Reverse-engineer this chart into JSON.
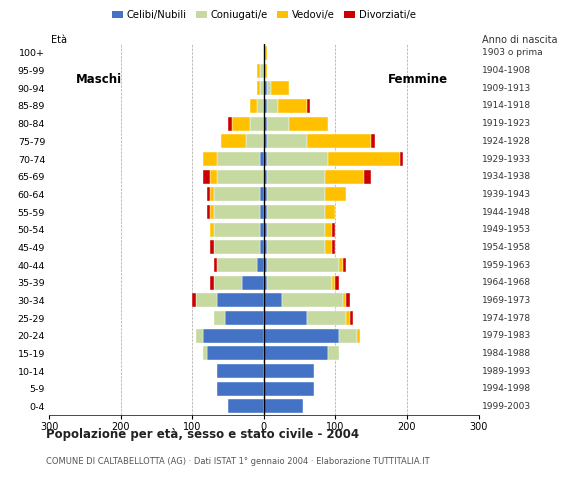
{
  "age_groups": [
    "0-4",
    "5-9",
    "10-14",
    "15-19",
    "20-24",
    "25-29",
    "30-34",
    "35-39",
    "40-44",
    "45-49",
    "50-54",
    "55-59",
    "60-64",
    "65-69",
    "70-74",
    "75-79",
    "80-84",
    "85-89",
    "90-94",
    "95-99",
    "100+"
  ],
  "birth_years": [
    "1999-2003",
    "1994-1998",
    "1989-1993",
    "1984-1988",
    "1979-1983",
    "1974-1978",
    "1969-1973",
    "1964-1968",
    "1959-1963",
    "1954-1958",
    "1949-1953",
    "1944-1948",
    "1939-1943",
    "1934-1938",
    "1929-1933",
    "1924-1928",
    "1919-1923",
    "1914-1918",
    "1909-1913",
    "1904-1908",
    "1903 o prima"
  ],
  "male_celibe": [
    50,
    65,
    65,
    80,
    85,
    55,
    65,
    30,
    10,
    5,
    5,
    5,
    5,
    0,
    5,
    0,
    0,
    0,
    0,
    0,
    0
  ],
  "male_coniugato": [
    0,
    0,
    0,
    5,
    10,
    15,
    30,
    40,
    55,
    65,
    65,
    65,
    65,
    65,
    60,
    25,
    20,
    10,
    5,
    5,
    0
  ],
  "male_vedovo": [
    0,
    0,
    0,
    0,
    0,
    0,
    0,
    0,
    0,
    0,
    5,
    5,
    5,
    10,
    20,
    35,
    25,
    10,
    5,
    5,
    0
  ],
  "male_divorziato": [
    0,
    0,
    0,
    0,
    0,
    0,
    5,
    5,
    5,
    5,
    0,
    5,
    5,
    10,
    0,
    0,
    5,
    0,
    0,
    0,
    0
  ],
  "female_celibe": [
    55,
    70,
    70,
    90,
    105,
    60,
    25,
    5,
    5,
    5,
    5,
    5,
    5,
    5,
    5,
    5,
    5,
    5,
    5,
    0,
    0
  ],
  "female_coniugato": [
    0,
    0,
    0,
    15,
    25,
    55,
    85,
    90,
    100,
    80,
    80,
    80,
    80,
    80,
    85,
    55,
    30,
    15,
    5,
    0,
    0
  ],
  "female_vedovo": [
    0,
    0,
    0,
    0,
    5,
    5,
    5,
    5,
    5,
    10,
    10,
    15,
    30,
    55,
    100,
    90,
    55,
    40,
    25,
    5,
    5
  ],
  "female_divorziato": [
    0,
    0,
    0,
    0,
    0,
    5,
    5,
    5,
    5,
    5,
    5,
    0,
    0,
    10,
    5,
    5,
    0,
    5,
    0,
    0,
    0
  ],
  "colors": {
    "celibe": "#4472c4",
    "coniugato": "#c5d9a0",
    "vedovo": "#ffc000",
    "divorziato": "#cc0000"
  },
  "title": "Popolazione per età, sesso e stato civile - 2004",
  "subtitle": "COMUNE DI CALTABELLOTTA (AG) · Dati ISTAT 1° gennaio 2004 · Elaborazione TUTTITALIA.IT",
  "xlim": 300,
  "legend_labels": [
    "Celibi/Nubili",
    "Coniugati/e",
    "Vedovi/e",
    "Divorziati/e"
  ],
  "bg_color": "#ffffff"
}
